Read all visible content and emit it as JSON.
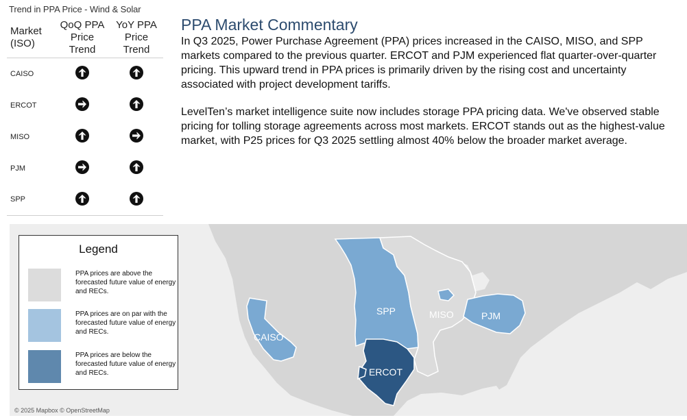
{
  "trend_panel": {
    "title": "Trend in PPA Price - Wind & Solar",
    "headers": {
      "market": [
        "Market",
        "(ISO)"
      ],
      "qoq": [
        "QoQ PPA",
        "Price",
        "Trend"
      ],
      "yoy": [
        "YoY PPA",
        "Price",
        "Trend"
      ]
    },
    "rows": [
      {
        "market": "CAISO",
        "qoq": "up-arrow-icon",
        "yoy": "up-arrow-icon"
      },
      {
        "market": "ERCOT",
        "qoq": "right-arrow-icon",
        "yoy": "up-arrow-icon"
      },
      {
        "market": "MISO",
        "qoq": "up-arrow-icon",
        "yoy": "right-arrow-icon"
      },
      {
        "market": "PJM",
        "qoq": "right-arrow-icon",
        "yoy": "up-arrow-icon"
      },
      {
        "market": "SPP",
        "qoq": "up-arrow-icon",
        "yoy": "up-arrow-icon"
      }
    ]
  },
  "commentary": {
    "title": "PPA Market Commentary",
    "paragraph_1": "In Q3 2025, Power Purchase Agreement (PPA) prices increased in the CAISO, MISO, and SPP markets compared to the previous quarter. ERCOT and PJM experienced flat quarter-over-quarter pricing. This upward trend in PPA prices is primarily driven by the rising cost and uncertainty associated with project development tariffs.",
    "paragraph_2": "LevelTen’s market intelligence suite now includes storage PPA pricing data. We've observed stable pricing for tolling storage agreements across most markets. ERCOT stands out as the highest-value market, with P25 prices for Q3 2025 settling almost 40% below the broader market average."
  },
  "legend": {
    "title": "Legend",
    "items": [
      {
        "text": "PPA prices are above the forecasted future value of energy and RECs.",
        "color": "#dcdcdc"
      },
      {
        "text": "PPA prices are on par with the forecasted future value of energy and RECs.",
        "color": "#a4c4e0"
      },
      {
        "text": "PPA prices are below the forecasted future value of energy and RECs.",
        "color": "#5f88ad"
      }
    ]
  },
  "map": {
    "attribution": "© 2025 Mapbox © OpenStreetMap",
    "regions": [
      {
        "label": "CAISO",
        "color": "#7aa9d2"
      },
      {
        "label": "SPP",
        "color": "#7aa9d2"
      },
      {
        "label": "MISO",
        "color": "#dcdcdc"
      },
      {
        "label": "PJM",
        "color": "#7aa9d2"
      },
      {
        "label": "ERCOT",
        "color": "#2c5783"
      }
    ]
  }
}
